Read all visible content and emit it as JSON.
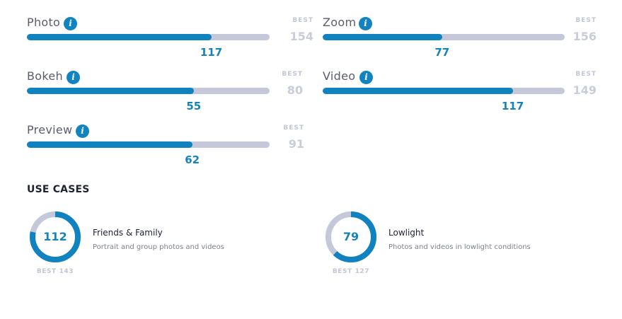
{
  "metrics": [
    {
      "label": "Photo",
      "score": 117,
      "best_label": "BEST",
      "best": 154
    },
    {
      "label": "Zoom",
      "score": 77,
      "best_label": "BEST",
      "best": 156
    },
    {
      "label": "Bokeh",
      "score": 55,
      "best_label": "BEST",
      "best": 80
    },
    {
      "label": "Video",
      "score": 117,
      "best_label": "BEST",
      "best": 149
    },
    {
      "label": "Preview",
      "score": 62,
      "best_label": "BEST",
      "best": 91
    }
  ],
  "info_icon": "info-icon",
  "use_cases_title": "USE CASES",
  "use_cases": [
    {
      "score": 112,
      "best_text": "BEST 143",
      "best": 143,
      "title": "Friends & Family",
      "description": "Portrait and group photos and videos"
    },
    {
      "score": 79,
      "best_text": "BEST 127",
      "best": 127,
      "title": "Lowlight",
      "description": "Photos and videos in lowlight conditions"
    }
  ],
  "colors": {
    "accent": "#0f82bf",
    "track": "#c5c8d9",
    "best_text": "#c8ccdb",
    "title": "#1f2230"
  }
}
